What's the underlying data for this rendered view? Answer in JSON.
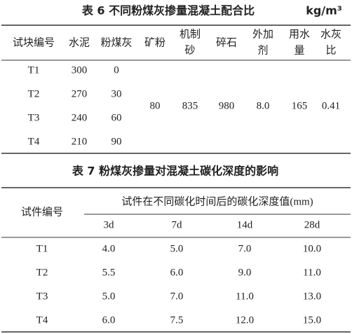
{
  "table6": {
    "title": "表 6  不同粉煤灰掺量混凝土配合比",
    "unit": "kg/m³",
    "header": [
      [
        "试块编号"
      ],
      [
        "水泥"
      ],
      [
        "粉煤灰"
      ],
      [
        "矿粉"
      ],
      [
        "机制",
        "砂"
      ],
      [
        "碎石"
      ],
      [
        "外加",
        "剂"
      ],
      [
        "用水",
        "量"
      ],
      [
        "水灰",
        "比"
      ]
    ],
    "rows": [
      [
        "T1",
        "300",
        "0"
      ],
      [
        "T2",
        "270",
        "30"
      ],
      [
        "T3",
        "240",
        "60"
      ],
      [
        "T4",
        "210",
        "90"
      ]
    ],
    "shared": [
      "80",
      "835",
      "980",
      "8.0",
      "165",
      "0.41"
    ]
  },
  "table7": {
    "title": "表 7  粉煤灰掺量对混凝土碳化深度的影响",
    "row_header": "试件编号",
    "group_header": "试件在不同碳化时间后的碳化深度值(mm)",
    "columns": [
      "3d",
      "7d",
      "14d",
      "28d"
    ],
    "rows": [
      [
        "T1",
        "4.0",
        "5.0",
        "7.0",
        "10.0"
      ],
      [
        "T2",
        "5.5",
        "6.0",
        "9.0",
        "11.0"
      ],
      [
        "T3",
        "5.0",
        "7.0",
        "11.0",
        "13.0"
      ],
      [
        "T4",
        "6.0",
        "7.5",
        "12.0",
        "15.0"
      ]
    ]
  }
}
